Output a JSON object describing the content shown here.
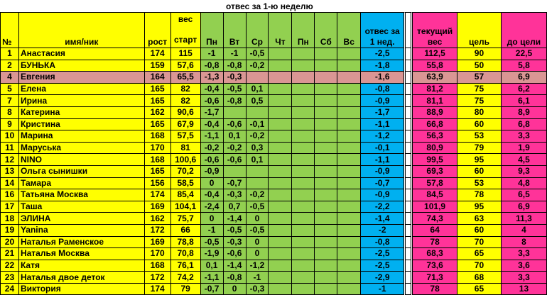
{
  "title": "отвес за 1-ю неделю",
  "colors": {
    "yellow": "#ffff00",
    "green": "#92d050",
    "blue": "#00b0f0",
    "magenta": "#ff3399",
    "highlight": "#da9694"
  },
  "headers": {
    "num": "№",
    "name": "имя/ник",
    "height": "рост",
    "start_top": "вес",
    "start": "старт",
    "days": [
      "Пн",
      "Вт",
      "Ср",
      "Чт",
      "Пн",
      "Сб",
      "Вс"
    ],
    "loss_top": "отвес за",
    "loss": "1 нед.",
    "current_top": "текущий",
    "current": "вес",
    "goal": "цель",
    "to_goal": "до цели"
  },
  "rows": [
    {
      "num": "1",
      "name": "Анастасия",
      "height": "174",
      "start": "115",
      "days": [
        "-1",
        "-1",
        "-0,5",
        "",
        "",
        "",
        ""
      ],
      "loss": "-2,5",
      "current": "112,5",
      "goal": "90",
      "to_goal": "22,5"
    },
    {
      "num": "2",
      "name": "БУНЬКА",
      "height": "159",
      "start": "57,6",
      "days": [
        "-0,8",
        "-0,8",
        "-0,2",
        "",
        "",
        "",
        ""
      ],
      "loss": "-1,8",
      "current": "55,8",
      "goal": "50",
      "to_goal": "5,8"
    },
    {
      "num": "4",
      "name": "Евгения",
      "height": "164",
      "start": "65,5",
      "days": [
        "-1,3",
        "-0,3",
        "",
        "",
        "",
        "",
        ""
      ],
      "loss": "-1,6",
      "current": "63,9",
      "goal": "57",
      "to_goal": "6,9",
      "highlighted": true
    },
    {
      "num": "5",
      "name": "Елена",
      "height": "165",
      "start": "82",
      "days": [
        "-0,4",
        "-0,5",
        "0,1",
        "",
        "",
        "",
        ""
      ],
      "loss": "-0,8",
      "current": "81,2",
      "goal": "75",
      "to_goal": "6,2"
    },
    {
      "num": "7",
      "name": "Ирина",
      "height": "165",
      "start": "82",
      "days": [
        "-0,6",
        "-0,8",
        "0,5",
        "",
        "",
        "",
        ""
      ],
      "loss": "-0,9",
      "current": "81,1",
      "goal": "75",
      "to_goal": "6,1"
    },
    {
      "num": "8",
      "name": "Катерина",
      "height": "162",
      "start": "90,6",
      "days": [
        "-1,7",
        "",
        "",
        "",
        "",
        "",
        ""
      ],
      "loss": "-1,7",
      "current": "88,9",
      "goal": "80",
      "to_goal": "8,9"
    },
    {
      "num": "9",
      "name": "Кристина",
      "height": "165",
      "start": "67,9",
      "days": [
        "-0,4",
        "-0,6",
        "-0,1",
        "",
        "",
        "",
        ""
      ],
      "loss": "-1,1",
      "current": "66,8",
      "goal": "60",
      "to_goal": "6,8"
    },
    {
      "num": "10",
      "name": "Марина",
      "height": "168",
      "start": "57,5",
      "days": [
        "-1,1",
        "0,1",
        "-0,2",
        "",
        "",
        "",
        ""
      ],
      "loss": "-1,2",
      "current": "56,3",
      "goal": "53",
      "to_goal": "3,3"
    },
    {
      "num": "11",
      "name": "Маруська",
      "height": "170",
      "start": "81",
      "days": [
        "-0,2",
        "-0,2",
        "0,3",
        "",
        "",
        "",
        ""
      ],
      "loss": "-0,1",
      "current": "80,9",
      "goal": "79",
      "to_goal": "1,9"
    },
    {
      "num": "12",
      "name": "NINO",
      "height": "168",
      "start": "100,6",
      "days": [
        "-0,6",
        "-0,6",
        "0,1",
        "",
        "",
        "",
        ""
      ],
      "loss": "-1,1",
      "current": "99,5",
      "goal": "95",
      "to_goal": "4,5"
    },
    {
      "num": "13",
      "name": "Ольга сынишки",
      "height": "165",
      "start": "70,2",
      "days": [
        "-0,9",
        "",
        "",
        "",
        "",
        "",
        ""
      ],
      "loss": "-0,9",
      "current": "69,3",
      "goal": "60",
      "to_goal": "9,3"
    },
    {
      "num": "14",
      "name": "Тамара",
      "height": "156",
      "start": "58,5",
      "days": [
        "0",
        "-0,7",
        "",
        "",
        "",
        "",
        ""
      ],
      "loss": "-0,7",
      "current": "57,8",
      "goal": "53",
      "to_goal": "4,8"
    },
    {
      "num": "16",
      "name": "Татьяна Москва",
      "height": "174",
      "start": "85,4",
      "days": [
        "-0,4",
        "-0,3",
        "-0,2",
        "",
        "",
        "",
        ""
      ],
      "loss": "-0,9",
      "current": "84,5",
      "goal": "78",
      "to_goal": "6,5"
    },
    {
      "num": "17",
      "name": "Таша",
      "height": "169",
      "start": "104,1",
      "days": [
        "-2,4",
        "0,7",
        "-0,5",
        "",
        "",
        "",
        ""
      ],
      "loss": "-2,2",
      "current": "101,9",
      "goal": "95",
      "to_goal": "6,9"
    },
    {
      "num": "18",
      "name": "ЭЛИНА",
      "height": "162",
      "start": "75,7",
      "days": [
        "0",
        "-1,4",
        "0",
        "",
        "",
        "",
        ""
      ],
      "loss": "-1,4",
      "current": "74,3",
      "goal": "63",
      "to_goal": "11,3"
    },
    {
      "num": "19",
      "name": "Yanina",
      "height": "172",
      "start": "66",
      "days": [
        "-1",
        "-0,5",
        "-0,5",
        "",
        "",
        "",
        ""
      ],
      "loss": "-2",
      "current": "64",
      "goal": "60",
      "to_goal": "4"
    },
    {
      "num": "20",
      "name": "Наталья Раменское",
      "height": "169",
      "start": "78,8",
      "days": [
        "-0,5",
        "-0,3",
        "0",
        "",
        "",
        "",
        ""
      ],
      "loss": "-0,8",
      "current": "78",
      "goal": "70",
      "to_goal": "8"
    },
    {
      "num": "21",
      "name": "Наталья Москва",
      "height": "170",
      "start": "70,8",
      "days": [
        "-1,9",
        "-0,6",
        "0",
        "",
        "",
        "",
        ""
      ],
      "loss": "-2,5",
      "current": "68,3",
      "goal": "65",
      "to_goal": "3,3"
    },
    {
      "num": "22",
      "name": "Катя",
      "height": "168",
      "start": "76,1",
      "days": [
        "0,1",
        "-1,4",
        "-1,2",
        "",
        "",
        "",
        ""
      ],
      "loss": "-2,5",
      "current": "73,6",
      "goal": "70",
      "to_goal": "3,6"
    },
    {
      "num": "23",
      "name": "Наталья двое деток",
      "height": "172",
      "start": "74,2",
      "days": [
        "-1,1",
        "-0,8",
        "-1",
        "",
        "",
        "",
        ""
      ],
      "loss": "-2,9",
      "current": "71,3",
      "goal": "68",
      "to_goal": "3,3"
    },
    {
      "num": "24",
      "name": "Виктория",
      "height": "174",
      "start": "79",
      "days": [
        "-0,7",
        "0",
        "-0,3",
        "",
        "",
        "",
        ""
      ],
      "loss": "-1",
      "current": "78",
      "goal": "65",
      "to_goal": "13"
    }
  ]
}
